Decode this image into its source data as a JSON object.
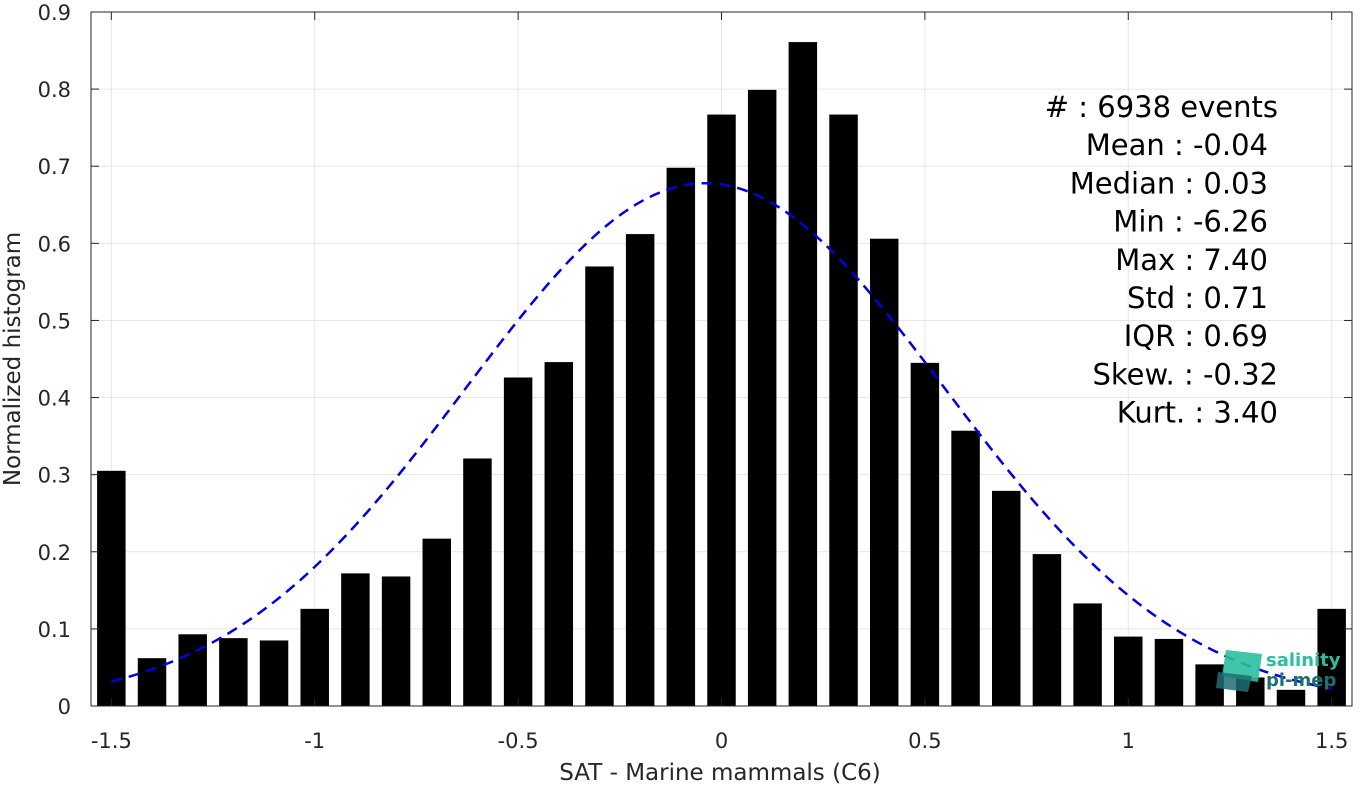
{
  "chart_data": {
    "type": "bar",
    "xlabel": "SAT - Marine mammals (C6)",
    "ylabel": "Normalized histogram",
    "xlim": [
      -1.55,
      1.55
    ],
    "ylim": [
      0,
      0.9
    ],
    "xticks": [
      -1.5,
      -1,
      -0.5,
      0,
      0.5,
      1,
      1.5
    ],
    "xtick_labels": [
      "-1.5",
      "-1",
      "-0.5",
      "0",
      "0.5",
      "1",
      "1.5"
    ],
    "yticks": [
      0,
      0.1,
      0.2,
      0.3,
      0.4,
      0.5,
      0.6,
      0.7,
      0.8,
      0.9
    ],
    "ytick_labels": [
      "0",
      "0.1",
      "0.2",
      "0.3",
      "0.4",
      "0.5",
      "0.6",
      "0.7",
      "0.8",
      "0.9"
    ],
    "grid": true,
    "bar_color": "#000000",
    "bar_width": 0.07,
    "x": [
      -1.5,
      -1.4,
      -1.3,
      -1.2,
      -1.1,
      -1.0,
      -0.9,
      -0.8,
      -0.7,
      -0.6,
      -0.5,
      -0.4,
      -0.3,
      -0.2,
      -0.1,
      0.0,
      0.1,
      0.2,
      0.3,
      0.4,
      0.5,
      0.6,
      0.7,
      0.8,
      0.9,
      1.0,
      1.1,
      1.2,
      1.3,
      1.4,
      1.5
    ],
    "values": [
      0.305,
      0.062,
      0.093,
      0.088,
      0.085,
      0.126,
      0.172,
      0.168,
      0.217,
      0.321,
      0.426,
      0.446,
      0.57,
      0.612,
      0.698,
      0.767,
      0.799,
      0.861,
      0.767,
      0.606,
      0.445,
      0.357,
      0.279,
      0.197,
      0.133,
      0.09,
      0.087,
      0.054,
      0.037,
      0.021,
      0.126
    ],
    "fit_curve": {
      "style": "dashed",
      "color": "#0000e0",
      "mean": -0.04,
      "std": 0.59,
      "peak": 0.678,
      "x_range": [
        -1.5,
        1.5
      ]
    },
    "stats": {
      "lines": [
        "#  : 6938 events",
        "Mean : -0.04",
        "Median : 0.03",
        "Min : -6.26",
        "Max : 7.40",
        "Std : 0.71",
        "IQR : 0.69",
        "Skew. : -0.32",
        "Kurt. : 3.40"
      ]
    },
    "logo": {
      "line1": "salinity",
      "line2": "pi-mep",
      "color_light": "#2bbfa0",
      "color_dark": "#1d6f73"
    }
  }
}
